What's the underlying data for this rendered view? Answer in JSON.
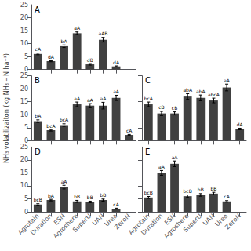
{
  "chart_data": [
    {
      "type": "bar",
      "title": "A",
      "ylabel": "NH₃ volatilizaiton (kg NH₃ – N ha⁻¹)",
      "categories": [
        "Agrotain",
        "Duration",
        "ESN",
        "Agroshere",
        "SuperU",
        "UAN",
        "Urea",
        "ZeroN"
      ],
      "values": [
        6.0,
        3.2,
        9.0,
        14.0,
        2.0,
        11.5,
        1.2,
        null
      ],
      "errors": [
        0.3,
        0.2,
        0.5,
        0.5,
        0.3,
        0.9,
        0.2,
        null
      ],
      "annotations": [
        "cA",
        "dA",
        "bA",
        "aA",
        "dB",
        "aAB",
        "dA",
        null
      ],
      "color": "#404040",
      "ylim": [
        0,
        25
      ],
      "yticks": [
        0,
        5,
        10,
        15,
        20,
        25
      ],
      "grid": false,
      "tick_labels": "y"
    },
    {
      "type": "bar",
      "title": "B",
      "categories": [
        "Agrotain",
        "Duration",
        "ESN",
        "Agroshere",
        "SuperU",
        "UAN",
        "Urea",
        "ZeroN"
      ],
      "values": [
        7.5,
        4.0,
        6.0,
        14.0,
        13.5,
        13.5,
        16.5,
        2.2
      ],
      "errors": [
        0.5,
        0.3,
        0.5,
        0.9,
        0.8,
        1.3,
        1.0,
        0.2
      ],
      "annotations": [
        "bA",
        "bcA",
        "bcA",
        "aA",
        "aA",
        "aA",
        "aA",
        "cA"
      ],
      "color": "#404040",
      "ylim": [
        0,
        25
      ],
      "yticks": [
        0,
        5,
        10,
        15,
        20,
        25
      ],
      "grid": false,
      "tick_labels": "y"
    },
    {
      "type": "bar",
      "title": "C",
      "categories": [
        "Agrotain",
        "Duration",
        "ESN",
        "Agroshere",
        "SuperU",
        "UAN",
        "Urea",
        "ZeroN"
      ],
      "values": [
        14.0,
        10.5,
        10.5,
        17.0,
        16.5,
        15.5,
        20.5,
        4.5
      ],
      "errors": [
        0.9,
        0.8,
        0.6,
        1.1,
        1.1,
        0.9,
        1.3,
        0.3
      ],
      "annotations": [
        "bcA",
        "cB",
        "cB",
        "abA",
        "abA",
        "abcA",
        "aA",
        "dA"
      ],
      "color": "#404040",
      "ylim": [
        0,
        25
      ],
      "yticks": [
        0,
        5,
        10,
        15,
        20,
        25
      ],
      "grid": false,
      "tick_labels": false
    },
    {
      "type": "bar",
      "title": "D",
      "categories": [
        "Agrotain",
        "Duration",
        "ESN",
        "Agroshere",
        "SuperU",
        "UAN",
        "Urea",
        "ZeroN"
      ],
      "values": [
        2.8,
        4.5,
        9.5,
        4.0,
        3.8,
        4.5,
        1.2,
        null
      ],
      "errors": [
        0.3,
        0.3,
        0.7,
        0.4,
        0.3,
        0.4,
        0.2,
        null
      ],
      "annotations": [
        "bcB",
        "bA",
        "aA",
        "bB",
        "bB",
        "bB",
        "cA",
        null
      ],
      "color": "#404040",
      "ylim": [
        0,
        25
      ],
      "yticks": [
        0,
        5,
        10,
        15,
        20,
        25
      ],
      "grid": false
    },
    {
      "type": "bar",
      "title": "E",
      "categories": [
        "Agrotain",
        "Duration",
        "ESN",
        "Agroshere",
        "SuperU",
        "UAN",
        "Urea",
        "ZeroN"
      ],
      "values": [
        5.5,
        15.0,
        18.5,
        6.0,
        6.5,
        7.0,
        4.0,
        null
      ],
      "errors": [
        0.4,
        0.9,
        1.1,
        0.5,
        0.5,
        0.5,
        0.3,
        null
      ],
      "annotations": [
        "bcB",
        "aA",
        "aA",
        "bcB",
        "bB",
        "bB",
        "cA",
        null
      ],
      "color": "#404040",
      "ylim": [
        0,
        25
      ],
      "yticks": [
        0,
        5,
        10,
        15,
        20,
        25
      ],
      "grid": false,
      "tick_labels": "x"
    }
  ]
}
